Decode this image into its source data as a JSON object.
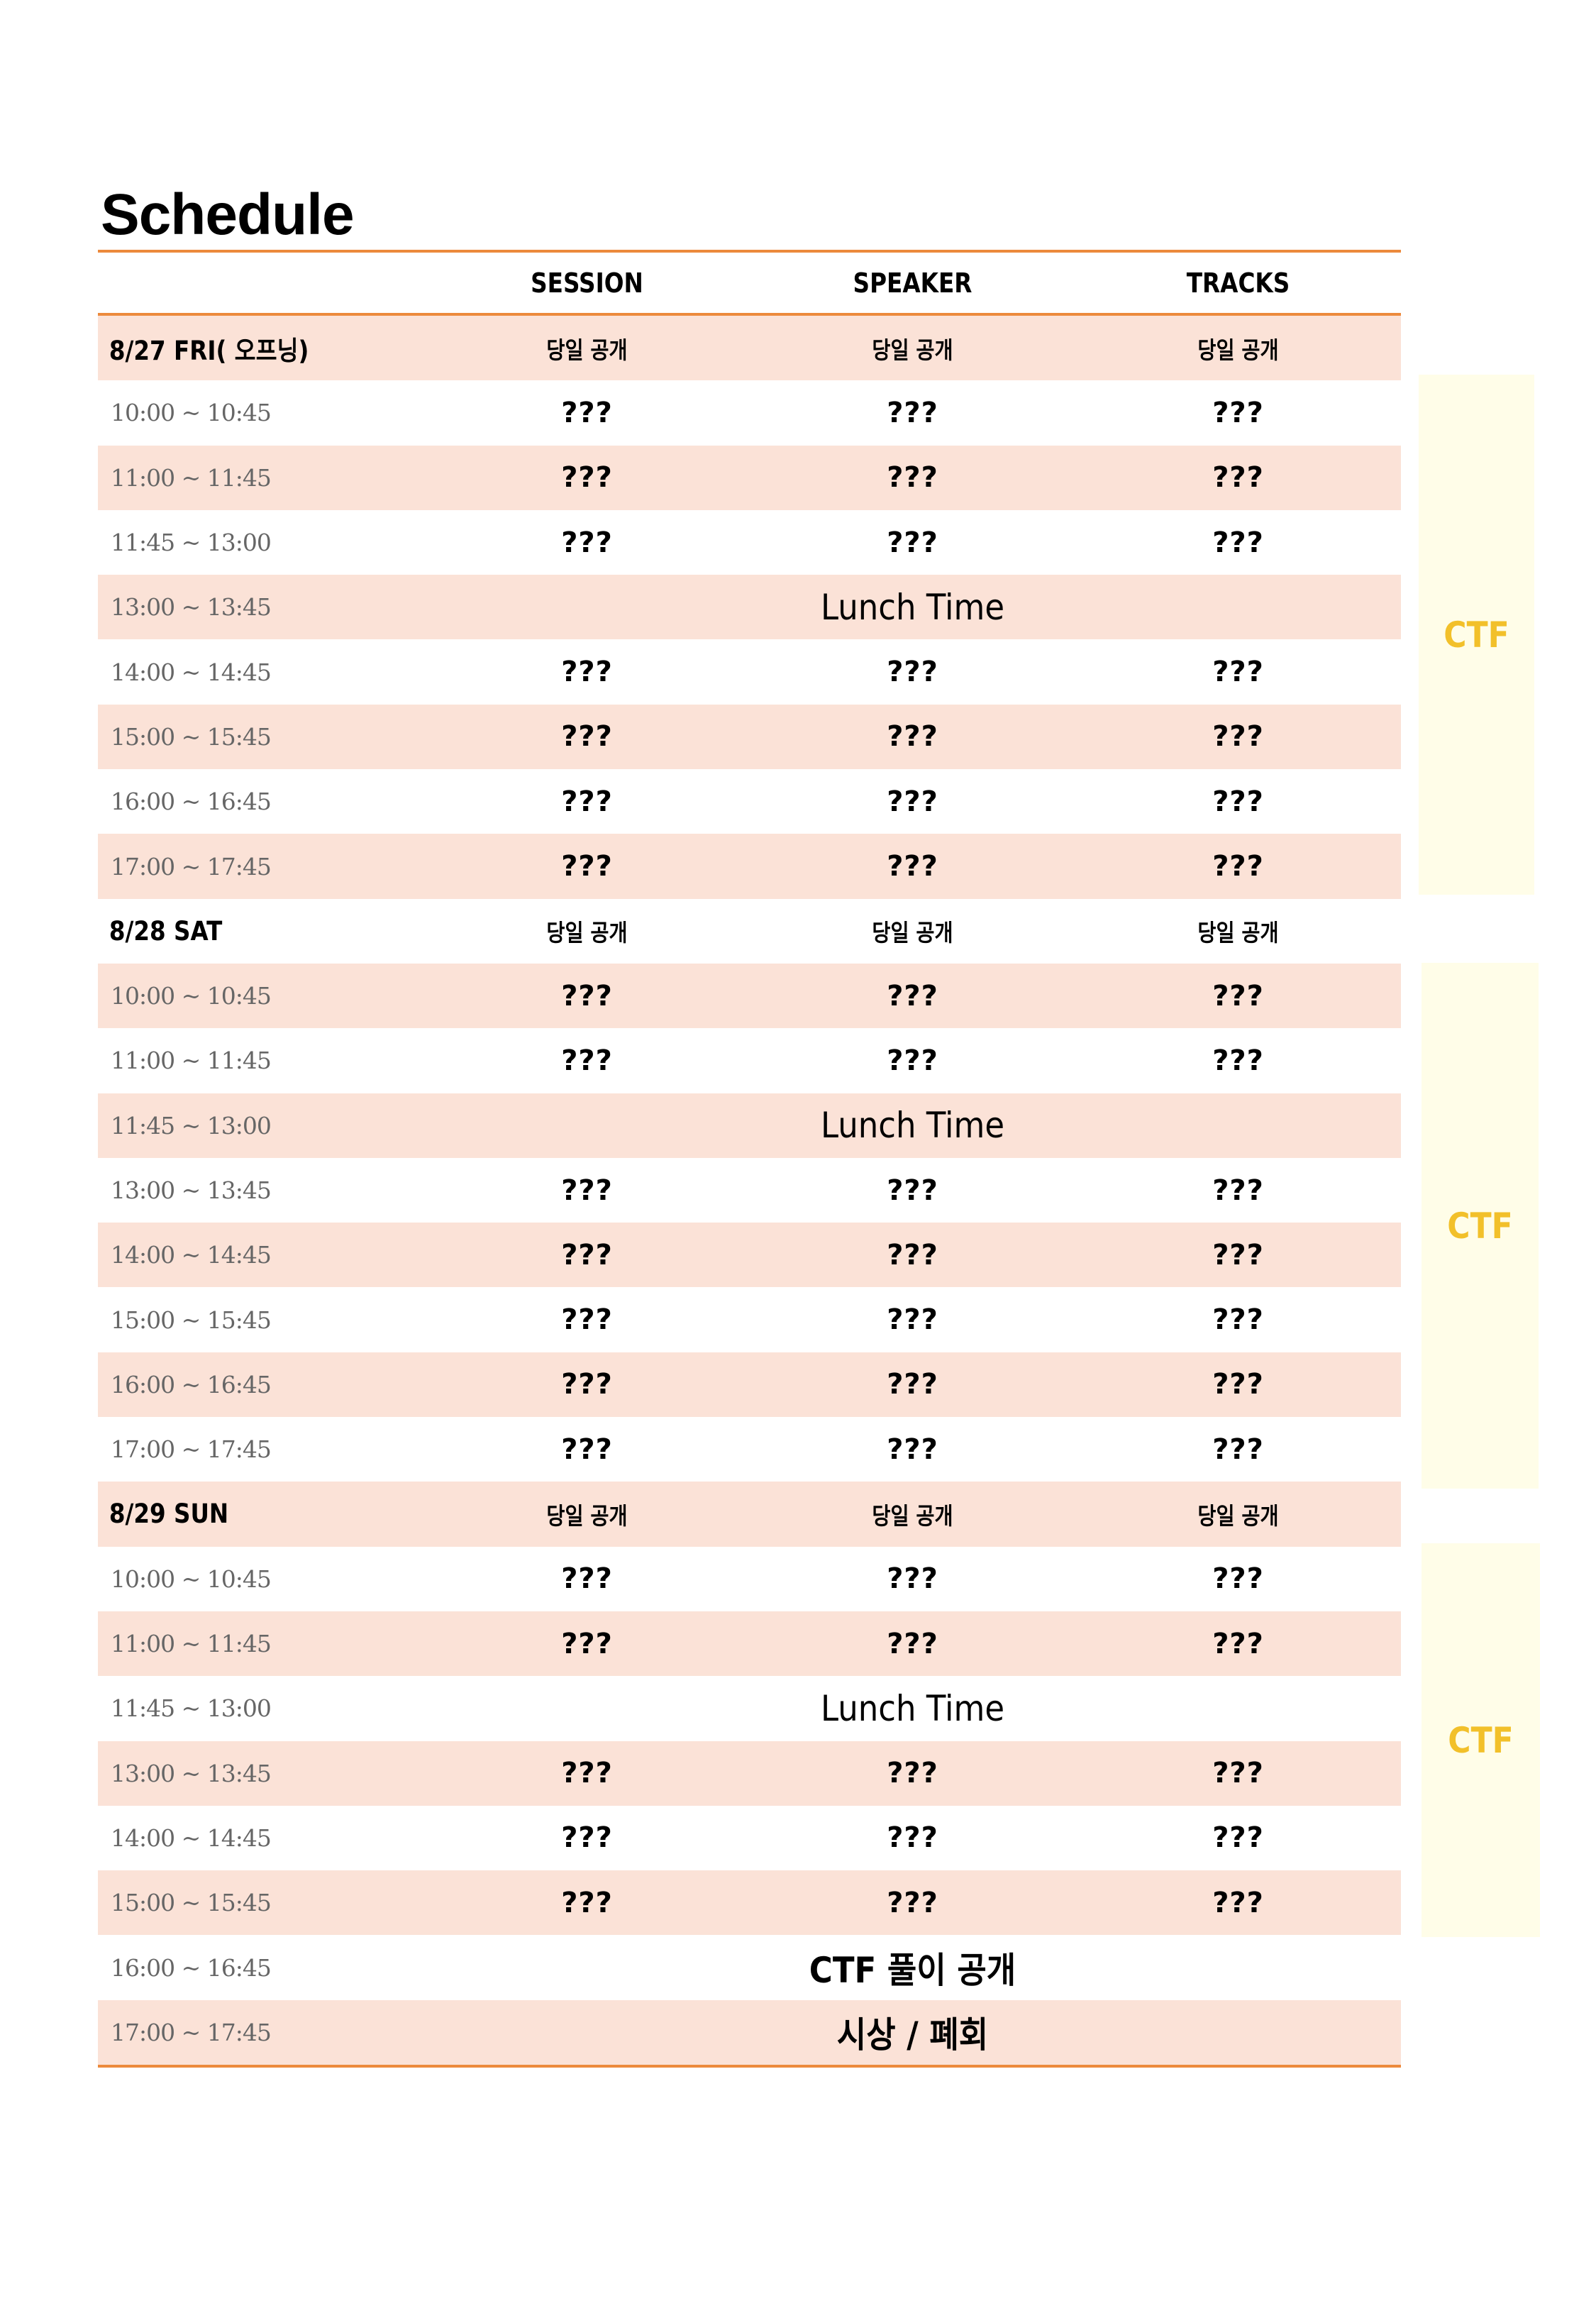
{
  "title": "Schedule",
  "columns": [
    "",
    "SESSION",
    "SPEAKER",
    "TRACKS"
  ],
  "rows": [
    {
      "kind": "day",
      "label": "8/27 FRI( 오프닝)",
      "cells": [
        "당일 공개",
        "당일 공개",
        "당일 공개"
      ]
    },
    {
      "kind": "slot",
      "label": "10:00 ~ 10:45",
      "cells": [
        "???",
        "???",
        "???"
      ]
    },
    {
      "kind": "slot",
      "label": "11:00 ~ 11:45",
      "cells": [
        "???",
        "???",
        "???"
      ]
    },
    {
      "kind": "slot",
      "label": "11:45 ~ 13:00",
      "cells": [
        "???",
        "???",
        "???"
      ]
    },
    {
      "kind": "span",
      "label": "13:00 ~ 13:45",
      "text": "Lunch Time"
    },
    {
      "kind": "slot",
      "label": "14:00 ~ 14:45",
      "cells": [
        "???",
        "???",
        "???"
      ]
    },
    {
      "kind": "slot",
      "label": "15:00 ~ 15:45",
      "cells": [
        "???",
        "???",
        "???"
      ]
    },
    {
      "kind": "slot",
      "label": "16:00 ~ 16:45",
      "cells": [
        "???",
        "???",
        "???"
      ]
    },
    {
      "kind": "slot",
      "label": "17:00 ~ 17:45",
      "cells": [
        "???",
        "???",
        "???"
      ]
    },
    {
      "kind": "day",
      "label": "8/28 SAT",
      "cells": [
        "당일 공개",
        "당일 공개",
        "당일 공개"
      ]
    },
    {
      "kind": "slot",
      "label": "10:00 ~ 10:45",
      "cells": [
        "???",
        "???",
        "???"
      ]
    },
    {
      "kind": "slot",
      "label": "11:00 ~ 11:45",
      "cells": [
        "???",
        "???",
        "???"
      ]
    },
    {
      "kind": "span",
      "label": "11:45 ~ 13:00",
      "text": "Lunch Time"
    },
    {
      "kind": "slot",
      "label": "13:00 ~ 13:45",
      "cells": [
        "???",
        "???",
        "???"
      ]
    },
    {
      "kind": "slot",
      "label": "14:00 ~ 14:45",
      "cells": [
        "???",
        "???",
        "???"
      ]
    },
    {
      "kind": "slot",
      "label": "15:00 ~ 15:45",
      "cells": [
        "???",
        "???",
        "???"
      ]
    },
    {
      "kind": "slot",
      "label": "16:00 ~ 16:45",
      "cells": [
        "???",
        "???",
        "???"
      ]
    },
    {
      "kind": "slot",
      "label": "17:00 ~ 17:45",
      "cells": [
        "???",
        "???",
        "???"
      ]
    },
    {
      "kind": "day",
      "label": "8/29 SUN",
      "cells": [
        "당일 공개",
        "당일 공개",
        "당일 공개"
      ]
    },
    {
      "kind": "slot",
      "label": "10:00 ~ 10:45",
      "cells": [
        "???",
        "???",
        "???"
      ]
    },
    {
      "kind": "slot",
      "label": "11:00 ~ 11:45",
      "cells": [
        "???",
        "???",
        "???"
      ]
    },
    {
      "kind": "span",
      "label": "11:45 ~ 13:00",
      "text": "Lunch Time"
    },
    {
      "kind": "slot",
      "label": "13:00 ~ 13:45",
      "cells": [
        "???",
        "???",
        "???"
      ]
    },
    {
      "kind": "slot",
      "label": "14:00 ~ 14:45",
      "cells": [
        "???",
        "???",
        "???"
      ]
    },
    {
      "kind": "slot",
      "label": "15:00 ~ 15:45",
      "cells": [
        "???",
        "???",
        "???"
      ]
    },
    {
      "kind": "span-bold",
      "label": "16:00 ~ 16:45",
      "text": "CTF 풀이 공개"
    },
    {
      "kind": "span-bold",
      "label": "17:00 ~ 17:45",
      "text": "시상 / 폐회"
    }
  ],
  "ctf_blocks": [
    {
      "label": "CTF"
    },
    {
      "label": "CTF"
    },
    {
      "label": "CTF"
    }
  ],
  "colors": {
    "accent_rule": "#ec8a3c",
    "row_shade": "#fbe2d7",
    "ctf_bg": "#fffde8",
    "ctf_text": "#f2c02a"
  }
}
